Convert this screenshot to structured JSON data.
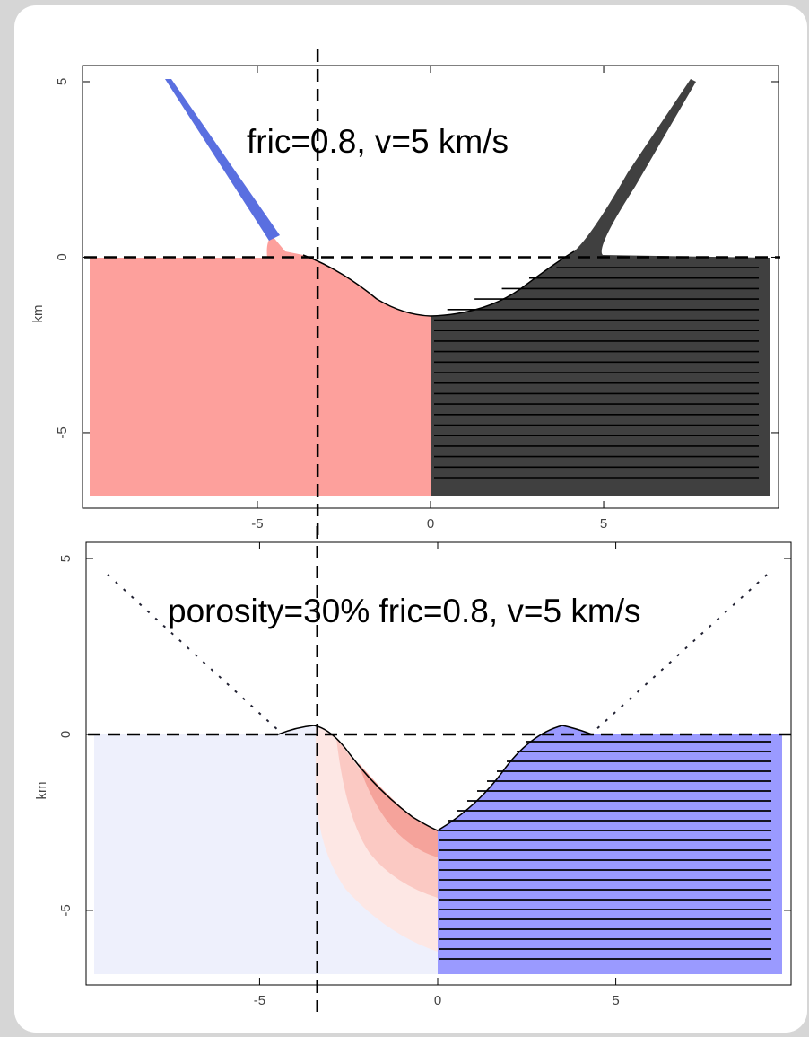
{
  "chart_data": [
    {
      "type": "crater",
      "annotation": "fric=0.8, v=5 km/s",
      "ylabel": "km",
      "xlim": [
        -10.05,
        10.05
      ],
      "ylim": [
        -7.15,
        5.46
      ],
      "xticks": [
        -5,
        0,
        5
      ],
      "yticks": [
        -5,
        0,
        5
      ],
      "hline": 0,
      "vline": -3.26
    },
    {
      "type": "crater",
      "annotation": "porosity=30% fric=0.8, v=5 km/s",
      "ylabel": "km",
      "xlim": [
        -9.87,
        9.92
      ],
      "ylim": [
        -7.12,
        5.46
      ],
      "xticks": [
        -5,
        0,
        5
      ],
      "yticks": [
        -5,
        0,
        5
      ],
      "hline": 0,
      "vline": -3.38
    }
  ]
}
